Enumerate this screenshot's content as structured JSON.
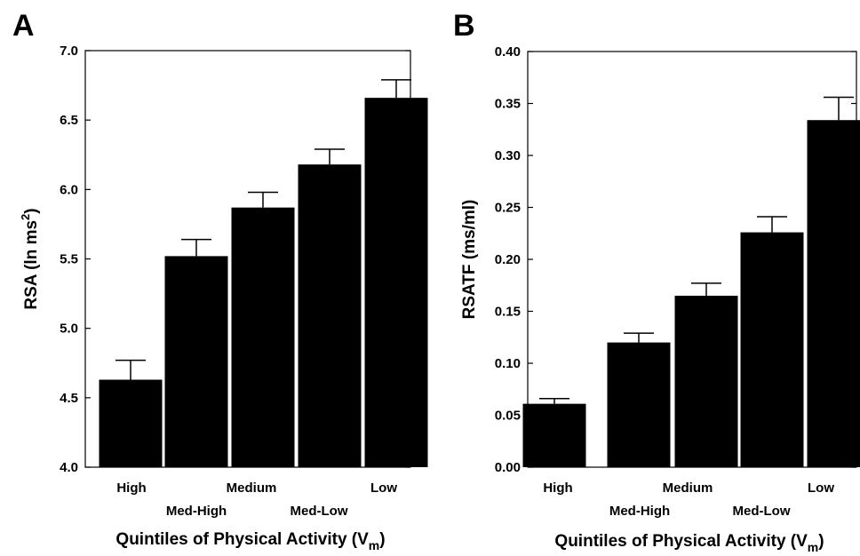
{
  "chart_data": [
    {
      "type": "bar",
      "panel_label": "A",
      "categories": [
        "High",
        "Med-High",
        "Medium",
        "Med-Low",
        "Low"
      ],
      "values": [
        4.63,
        5.52,
        5.87,
        6.18,
        6.66
      ],
      "error": [
        0.14,
        0.12,
        0.11,
        0.11,
        0.13
      ],
      "ylabel": "RSA (ln ms",
      "ylabel_sup": "2",
      "ylabel_end": ")",
      "xlabel": "Quintiles of Physical Activity (V",
      "xlabel_sub": "m",
      "xlabel_end": ")",
      "ylim": [
        4.0,
        7.0
      ],
      "yticks": [
        "4.0",
        "4.5",
        "5.0",
        "5.5",
        "6.0",
        "6.5",
        "7.0"
      ],
      "bar_color": "#000000",
      "grid": false
    },
    {
      "type": "bar",
      "panel_label": "B",
      "categories": [
        "High",
        "Med-High",
        "Medium",
        "Med-Low",
        "Low"
      ],
      "values": [
        0.061,
        0.12,
        0.165,
        0.226,
        0.334
      ],
      "error": [
        0.005,
        0.009,
        0.012,
        0.015,
        0.022
      ],
      "ylabel": "RSATF (ms/ml)",
      "xlabel": "Quintiles of Physical Activity (V",
      "xlabel_sub": "m",
      "xlabel_end": ")",
      "ylim": [
        0.0,
        0.4
      ],
      "yticks": [
        "0.00",
        "0.05",
        "0.10",
        "0.15",
        "0.20",
        "0.25",
        "0.30",
        "0.35",
        "0.40"
      ],
      "bar_color": "#000000",
      "grid": false
    }
  ]
}
